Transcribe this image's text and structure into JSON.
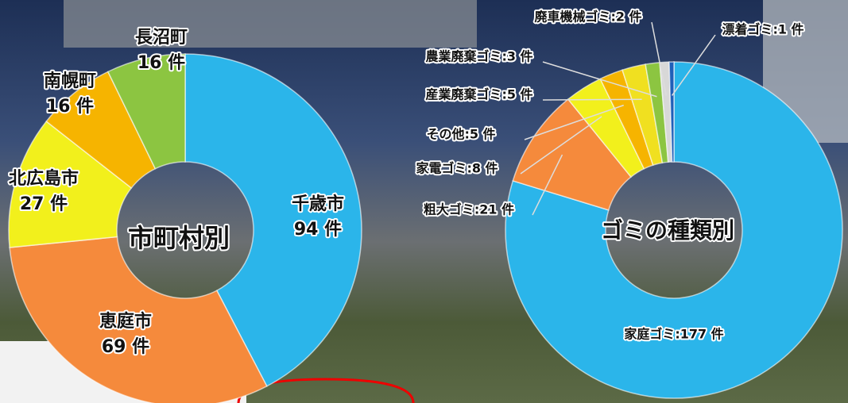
{
  "chart_data": [
    {
      "type": "donut",
      "title": "市町村別",
      "categories": [
        "千歳市",
        "恵庭市",
        "北広島市",
        "南幌町",
        "長沼町"
      ],
      "values": [
        94,
        69,
        27,
        16,
        16
      ],
      "value_labels": [
        "94 件",
        "69 件",
        "27 件",
        "16 件",
        "16 件"
      ],
      "colors": [
        "#2bb5ea",
        "#f58a3c",
        "#f2f01c",
        "#f6b400",
        "#8cc541"
      ]
    },
    {
      "type": "donut",
      "title": "ゴミの種類別",
      "values": [
        177,
        21,
        8,
        5,
        5,
        3,
        2,
        1
      ],
      "value_labels": [
        "家庭ゴミ:177 件",
        "粗大ゴミ:21 件",
        "家電ゴミ:8 件",
        "その他:5 件",
        "産業廃棄ゴミ:5 件",
        "農業廃棄ゴミ:3 件",
        "廃車機械ゴミ:2 件",
        "漂着ゴミ:1 件"
      ],
      "colors": [
        "#2bb5ea",
        "#f58a3c",
        "#f2f01c",
        "#f6b400",
        "#f0e020",
        "#8cc541",
        "#d8d8d8",
        "#1f5fb8"
      ]
    }
  ]
}
